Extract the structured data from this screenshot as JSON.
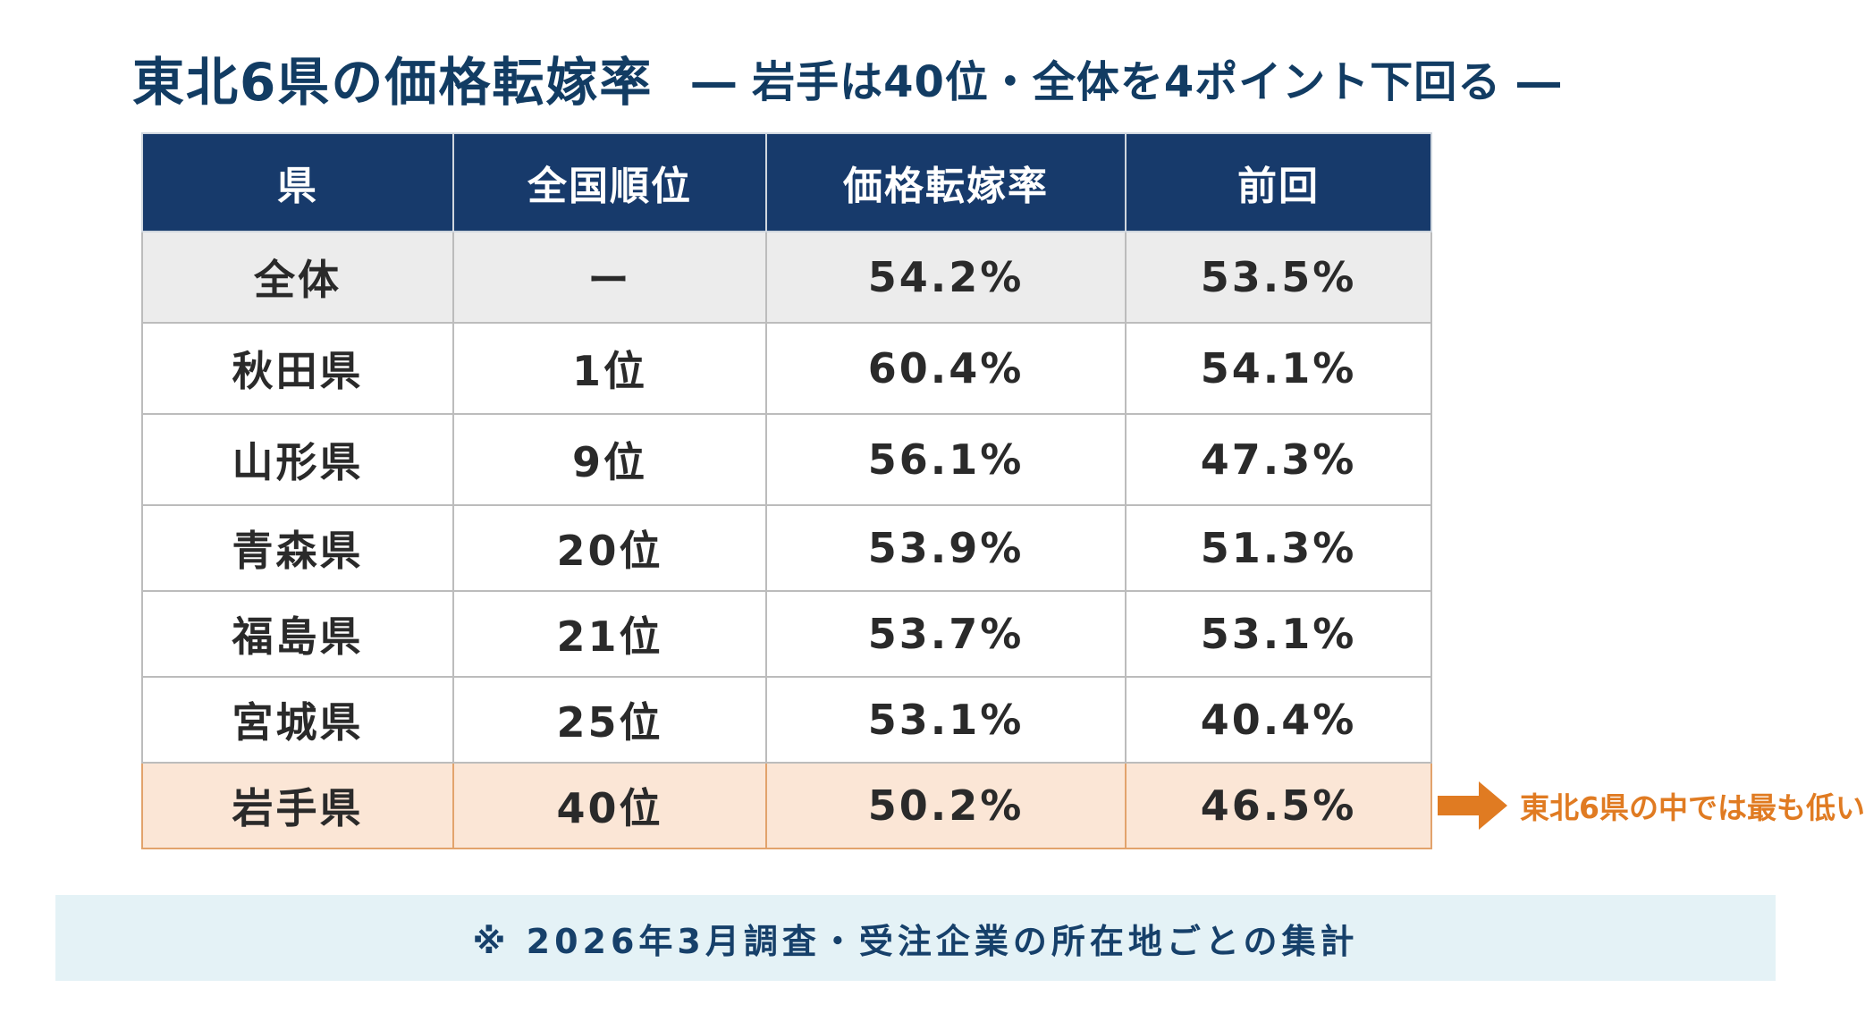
{
  "title": {
    "main": "東北6県の価格転嫁率",
    "sub": "― 岩手は40位・全体を4ポイント下回る ―"
  },
  "table": {
    "headers": [
      "県",
      "全国順位",
      "価格転嫁率",
      "前回"
    ],
    "rows": [
      {
        "pref": "全体",
        "rank": "ー",
        "rate": "54.2%",
        "previous": "53.5%"
      },
      {
        "pref": "秋田県",
        "rank": "1位",
        "rate": "60.4%",
        "previous": "54.1%"
      },
      {
        "pref": "山形県",
        "rank": "9位",
        "rate": "56.1%",
        "previous": "47.3%"
      },
      {
        "pref": "青森県",
        "rank": "20位",
        "rate": "53.9%",
        "previous": "51.3%"
      },
      {
        "pref": "福島県",
        "rank": "21位",
        "rate": "53.7%",
        "previous": "53.1%"
      },
      {
        "pref": "宮城県",
        "rank": "25位",
        "rate": "53.1%",
        "previous": "40.4%"
      },
      {
        "pref": "岩手県",
        "rank": "40位",
        "rate": "50.2%",
        "previous": "46.5%"
      }
    ]
  },
  "callout": {
    "text": "東北6県の中では最も低い",
    "icon": "arrow-right-icon"
  },
  "footnote": {
    "text": "※ 2026年3月調査・受注企業の所在地ごとの集計"
  },
  "colors": {
    "title": "#123c63",
    "header_bg": "#173a6b",
    "total_row_bg": "#ececec",
    "highlight_row_bg": "#fbe6d6",
    "highlight_border": "#e2a36c",
    "accent_orange": "#e07b22",
    "footnote_bg": "#e4f2f6"
  }
}
